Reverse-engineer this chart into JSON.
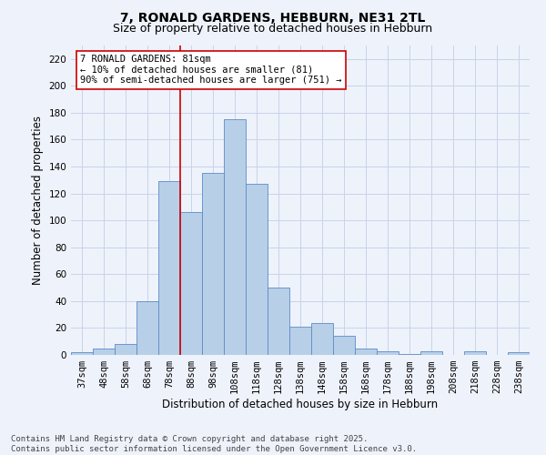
{
  "title_line1": "7, RONALD GARDENS, HEBBURN, NE31 2TL",
  "title_line2": "Size of property relative to detached houses in Hebburn",
  "xlabel": "Distribution of detached houses by size in Hebburn",
  "ylabel": "Number of detached properties",
  "bar_color": "#b8cfe8",
  "bar_edge_color": "#5b8cc8",
  "categories": [
    "37sqm",
    "48sqm",
    "58sqm",
    "68sqm",
    "78sqm",
    "88sqm",
    "98sqm",
    "108sqm",
    "118sqm",
    "128sqm",
    "138sqm",
    "148sqm",
    "158sqm",
    "168sqm",
    "178sqm",
    "188sqm",
    "198sqm",
    "208sqm",
    "218sqm",
    "228sqm",
    "238sqm"
  ],
  "values": [
    2,
    5,
    8,
    40,
    129,
    106,
    135,
    175,
    127,
    50,
    21,
    24,
    14,
    5,
    3,
    1,
    3,
    0,
    3,
    0,
    2
  ],
  "ylim": [
    0,
    230
  ],
  "yticks": [
    0,
    20,
    40,
    60,
    80,
    100,
    120,
    140,
    160,
    180,
    200,
    220
  ],
  "vline_x_index": 4,
  "vline_color": "#cc0000",
  "annotation_text": "7 RONALD GARDENS: 81sqm\n← 10% of detached houses are smaller (81)\n90% of semi-detached houses are larger (751) →",
  "annotation_box_color": "#ffffff",
  "annotation_box_edge_color": "#cc0000",
  "footer_text": "Contains HM Land Registry data © Crown copyright and database right 2025.\nContains public sector information licensed under the Open Government Licence v3.0.",
  "bg_color": "#eef2fb",
  "grid_color": "#c8d4e8",
  "title_fontsize": 10,
  "subtitle_fontsize": 9,
  "axis_label_fontsize": 8.5,
  "tick_fontsize": 7.5,
  "annotation_fontsize": 7.5,
  "footer_fontsize": 6.5
}
